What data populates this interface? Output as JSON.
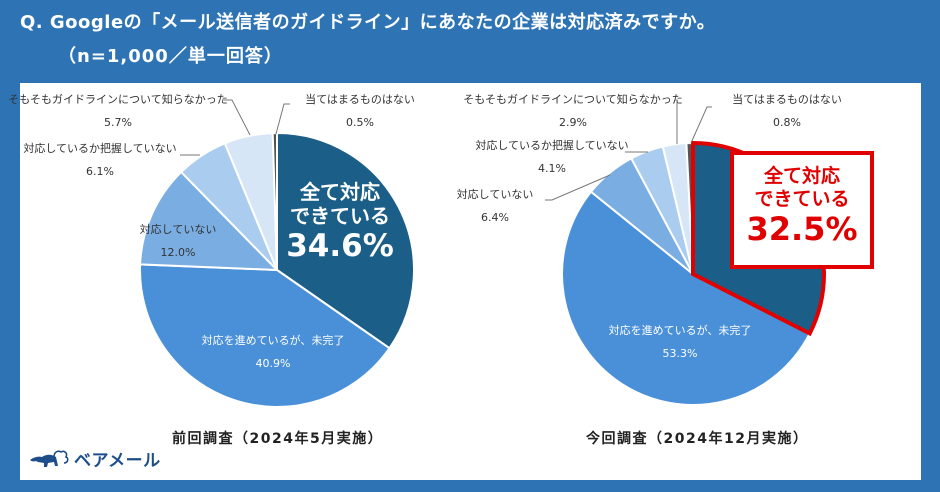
{
  "header": {
    "title": "Q. Googleの「メール送信者のガイドライン」にあなたの企業は対応済みですか。",
    "subtitle": "（n=1,000／単一回答）"
  },
  "colors": {
    "background": "#2e74b5",
    "slice_all_done": "#1b5e87",
    "slice_in_progress": "#4a90d9",
    "slice_not_done": "#7aaee3",
    "slice_unknown": "#a9ccef",
    "slice_didnt_know": "#d6e6f6",
    "slice_none": "#555555",
    "highlight": "#e00000"
  },
  "logo": {
    "text": "ベアメール"
  },
  "chart_data": [
    {
      "type": "pie",
      "title": "前回調査（2024年5月実施）",
      "categories": [
        "全て対応できている",
        "対応を進めているが、未完了",
        "対応していない",
        "対応しているか把握していない",
        "そもそもガイドラインについて知らなかった",
        "当てはまるものはない"
      ],
      "values": [
        34.6,
        40.9,
        12.0,
        6.1,
        5.7,
        0.5
      ],
      "labels": [
        "34.6%",
        "40.9%",
        "12.0%",
        "6.1%",
        "5.7%",
        "0.5%"
      ],
      "highlight": {
        "line1": "全て対応",
        "line2": "できている",
        "value": "34.6%"
      }
    },
    {
      "type": "pie",
      "title": "今回調査（2024年12月実施）",
      "categories": [
        "全て対応できている",
        "対応を進めているが、未完了",
        "対応していない",
        "対応しているか把握していない",
        "そもそもガイドラインについて知らなかった",
        "当てはまるものはない"
      ],
      "values": [
        32.5,
        53.3,
        6.4,
        4.1,
        2.9,
        0.8
      ],
      "labels": [
        "32.5%",
        "53.3%",
        "6.4%",
        "4.1%",
        "2.9%",
        "0.8%"
      ],
      "highlight": {
        "line1": "全て対応",
        "line2": "できている",
        "value": "32.5%"
      }
    }
  ]
}
